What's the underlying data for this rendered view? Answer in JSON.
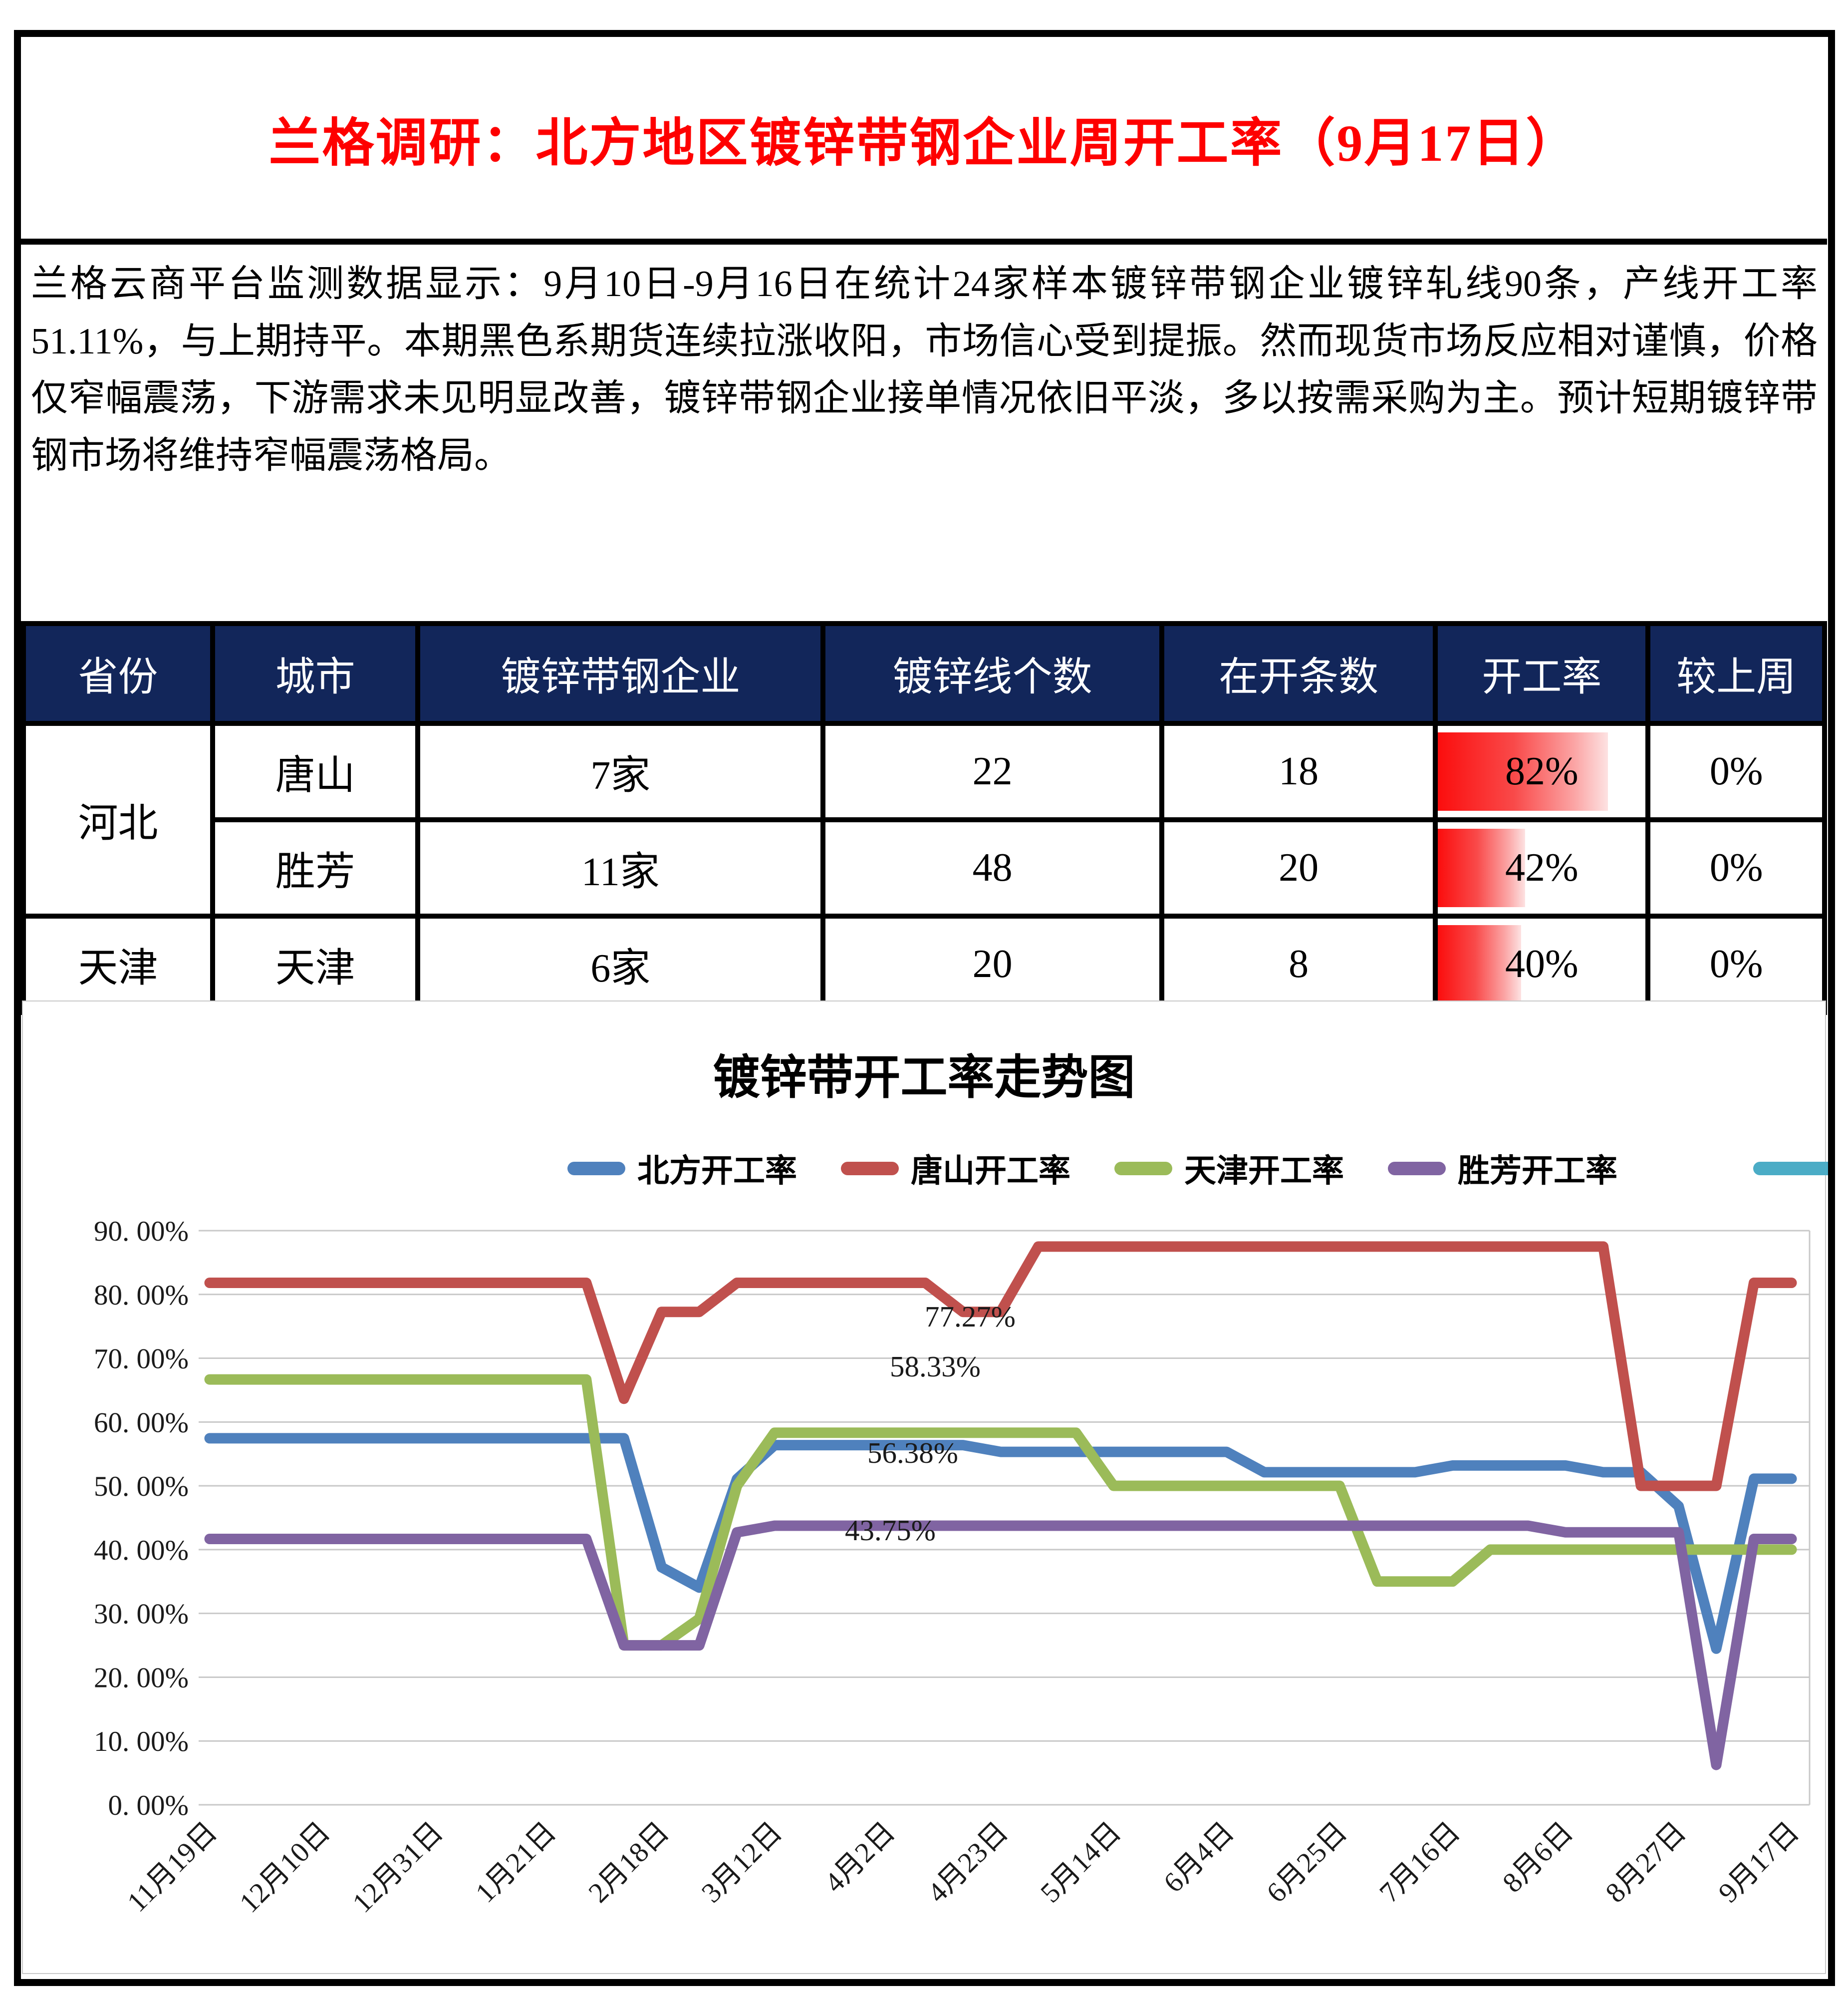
{
  "page": {
    "title": "兰格调研：北方地区镀锌带钢企业周开工率（9月17日）",
    "title_color": "#fe0000"
  },
  "summary": {
    "text": "兰格云商平台监测数据显示：9月10日-9月16日在统计24家样本镀锌带钢企业镀锌轧线90条，产线开工率51.11%，与上期持平。本期黑色系期货连续拉涨收阳，市场信心受到提振。然而现货市场反应相对谨慎，价格仅窄幅震荡，下游需求未见明显改善，镀锌带钢企业接单情况依旧平淡，多以按需采购为主。预计短期镀锌带钢市场将维持窄幅震荡格局。"
  },
  "table": {
    "header_bg": "#12265a",
    "headers": [
      "省份",
      "城市",
      "镀锌带钢企业",
      "镀锌线个数",
      "在开条数",
      "开工率",
      "较上周"
    ],
    "col_widths_pct": [
      10.5,
      11.4,
      22.5,
      18.8,
      15.2,
      11.8,
      9.8
    ],
    "bar_gradient": [
      "#fb0d0d",
      "#fde2e2"
    ],
    "rows": [
      {
        "province": "河北",
        "city": "唐山",
        "companies": "7家",
        "lines": "22",
        "open": "18",
        "rate": "82%",
        "rate_value": 82,
        "wow": "0%"
      },
      {
        "province": "河北",
        "city": "胜芳",
        "companies": "11家",
        "lines": "48",
        "open": "20",
        "rate": "42%",
        "rate_value": 42,
        "wow": "0%"
      },
      {
        "province": "天津",
        "city": "天津",
        "companies": "6家",
        "lines": "20",
        "open": "8",
        "rate": "40%",
        "rate_value": 40,
        "wow": "0%"
      }
    ]
  },
  "chart_data": {
    "type": "line",
    "title": "镀锌带开工率走势图",
    "grid": true,
    "legend_position": "top",
    "ylim": [
      0,
      90
    ],
    "y_tick_labels": [
      "0. 00%",
      "10. 00%",
      "20. 00%",
      "30. 00%",
      "40. 00%",
      "50. 00%",
      "60. 00%",
      "70. 00%",
      "80. 00%",
      "90. 00%"
    ],
    "n_points": 43,
    "x_tick_interval": 3,
    "x_tick_labels": [
      "11月19日",
      "12月10日",
      "12月31日",
      "1月21日",
      "2月18日",
      "3月12日",
      "4月2日",
      "4月23日",
      "5月14日",
      "6月4日",
      "6月25日",
      "7月16日",
      "8月6日",
      "8月27日",
      "9月17日"
    ],
    "series": [
      {
        "name": "北方开工率",
        "color": "#4F81BD",
        "values": [
          57.45,
          57.45,
          57.45,
          57.45,
          57.45,
          57.45,
          57.45,
          57.45,
          57.45,
          57.45,
          57.45,
          57.45,
          37.23,
          34.04,
          51.06,
          56.38,
          56.38,
          56.38,
          56.38,
          56.38,
          56.38,
          55.32,
          55.32,
          55.32,
          55.32,
          55.32,
          55.32,
          55.32,
          52.13,
          52.13,
          52.13,
          52.13,
          52.13,
          53.19,
          53.19,
          53.19,
          53.19,
          52.13,
          52.13,
          46.81,
          24.47,
          51.11,
          51.11
        ]
      },
      {
        "name": "唐山开工率",
        "color": "#C0504D",
        "values": [
          81.82,
          81.82,
          81.82,
          81.82,
          81.82,
          81.82,
          81.82,
          81.82,
          81.82,
          81.82,
          81.82,
          63.64,
          77.27,
          77.27,
          81.82,
          81.82,
          81.82,
          81.82,
          81.82,
          81.82,
          77.27,
          77.27,
          87.5,
          87.5,
          87.5,
          87.5,
          87.5,
          87.5,
          87.5,
          87.5,
          87.5,
          87.5,
          87.5,
          87.5,
          87.5,
          87.5,
          87.5,
          87.5,
          50,
          50,
          50,
          81.82,
          81.82
        ]
      },
      {
        "name": "天津开工率",
        "color": "#9BBB59",
        "values": [
          66.67,
          66.67,
          66.67,
          66.67,
          66.67,
          66.67,
          66.67,
          66.67,
          66.67,
          66.67,
          66.67,
          25,
          25,
          29.17,
          50,
          58.33,
          58.33,
          58.33,
          58.33,
          58.33,
          58.33,
          58.33,
          58.33,
          58.33,
          50,
          50,
          50,
          50,
          50,
          50,
          50,
          35,
          35,
          35,
          40,
          40,
          40,
          40,
          40,
          40,
          40,
          40,
          40
        ]
      },
      {
        "name": "胜芳开工率",
        "color": "#8064A2",
        "values": [
          41.67,
          41.67,
          41.67,
          41.67,
          41.67,
          41.67,
          41.67,
          41.67,
          41.67,
          41.67,
          41.67,
          25,
          25,
          25,
          42.71,
          43.75,
          43.75,
          43.75,
          43.75,
          43.75,
          43.75,
          43.75,
          43.75,
          43.75,
          43.75,
          43.75,
          43.75,
          43.75,
          43.75,
          43.75,
          43.75,
          43.75,
          43.75,
          43.75,
          43.75,
          43.75,
          42.71,
          42.71,
          42.71,
          42.71,
          6.25,
          41.67,
          41.67
        ]
      }
    ],
    "extra_legend_swatch_color": "#4BACC6",
    "annotations": [
      {
        "text": "77.27%",
        "px": [
          1944,
          272
        ]
      },
      {
        "text": "58.33%",
        "px": [
          1874,
          372
        ]
      },
      {
        "text": "56.38%",
        "px": [
          1829,
          545
        ]
      },
      {
        "text": "43.75%",
        "px": [
          1784,
          700
        ]
      }
    ]
  }
}
